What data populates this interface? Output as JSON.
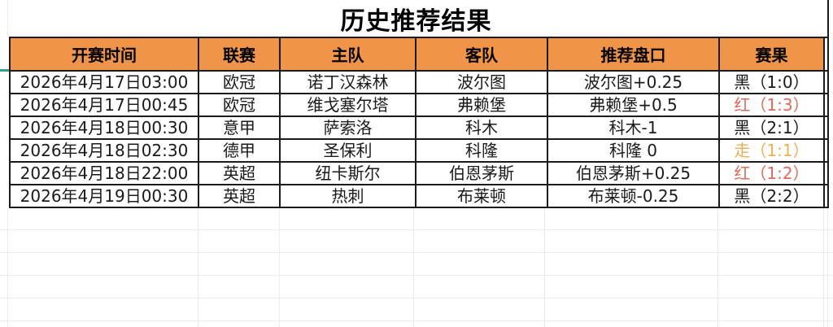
{
  "title": "历史推荐结果",
  "table": {
    "columns": [
      "开赛时间",
      "联赛",
      "主队",
      "客队",
      "推荐盘口",
      "赛果"
    ],
    "rows": [
      {
        "time": "2026年4月17日03:00",
        "league": "欧冠",
        "home": "诺丁汉森林",
        "away": "波尔图",
        "handicap": "波尔图+0.25",
        "result": "黑（1:0）",
        "result_type": "black"
      },
      {
        "time": "2026年4月17日00:45",
        "league": "欧冠",
        "home": "维戈塞尔塔",
        "away": "弗赖堡",
        "handicap": "弗赖堡+0.5",
        "result": "红（1:3）",
        "result_type": "red"
      },
      {
        "time": "2026年4月18日00:30",
        "league": "意甲",
        "home": "萨索洛",
        "away": "科木",
        "handicap": "科木-1",
        "result": "黑（2:1）",
        "result_type": "black"
      },
      {
        "time": "2026年4月18日02:30",
        "league": "德甲",
        "home": "圣保利",
        "away": "科隆",
        "handicap": "科隆 0",
        "result": "走（1:1）",
        "result_type": "push"
      },
      {
        "time": "2026年4月18日22:00",
        "league": "英超",
        "home": "纽卡斯尔",
        "away": "伯恩茅斯",
        "handicap": "伯恩茅斯+0.25",
        "result": "红（1:2）",
        "result_type": "red"
      },
      {
        "time": "2026年4月19日00:30",
        "league": "英超",
        "home": "热刺",
        "away": "布莱顿",
        "handicap": "布莱顿-0.25",
        "result": "黑（2:2）",
        "result_type": "black"
      }
    ]
  },
  "colors": {
    "header_bg": "#F0944A",
    "table_border": "#1C1C1C",
    "result_black": "#1A1A1A",
    "result_red": "#DC6A5F",
    "result_push": "#EDAF55",
    "row_marker_green": "#2EA188",
    "gridline": "#EFEAEA"
  }
}
